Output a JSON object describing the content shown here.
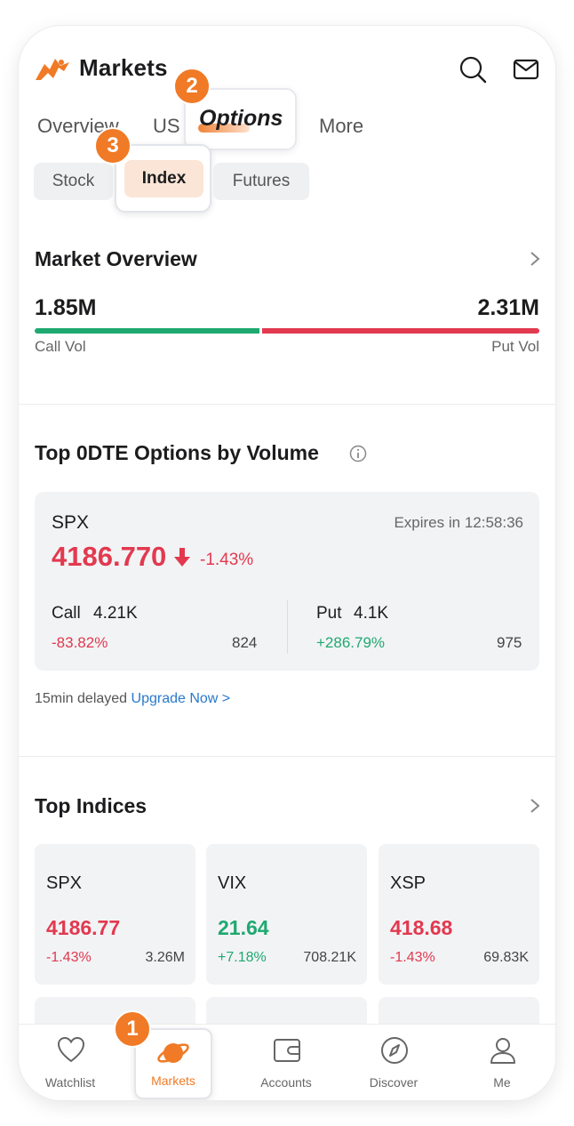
{
  "header": {
    "title": "Markets",
    "icons": [
      "search-icon",
      "mail-icon"
    ]
  },
  "tabs": [
    {
      "label": "Overview"
    },
    {
      "label": "US"
    },
    {
      "label": "Options",
      "active": true
    },
    {
      "label": "More"
    }
  ],
  "subtabs": [
    {
      "label": "Stock"
    },
    {
      "label": "Index",
      "active": true
    },
    {
      "label": "Futures"
    }
  ],
  "steps": [
    "1",
    "2",
    "3"
  ],
  "market_overview": {
    "title": "Market Overview",
    "call_value": "1.85M",
    "put_value": "2.31M",
    "call_label": "Call Vol",
    "put_label": "Put Vol",
    "call_share": 0.445
  },
  "top_0dte": {
    "title": "Top 0DTE Options by Volume",
    "symbol": "SPX",
    "expires": "Expires in 12:58:36",
    "price": "4186.770",
    "change_pct": "-1.43%",
    "call_label": "Call",
    "call_volume": "4.21K",
    "call_change": "-83.82%",
    "call_count": "824",
    "put_label": "Put",
    "put_volume": "4.1K",
    "put_change": "+286.79%",
    "put_count": "975",
    "delay_text": "15min delayed",
    "upgrade_text": "Upgrade Now >"
  },
  "top_indices": {
    "title": "Top Indices",
    "cards": [
      {
        "symbol": "SPX",
        "price": "4186.77",
        "change": "-1.43%",
        "volume": "3.26M",
        "direction": "down"
      },
      {
        "symbol": "VIX",
        "price": "21.64",
        "change": "+7.18%",
        "volume": "708.21K",
        "direction": "up"
      },
      {
        "symbol": "XSP",
        "price": "418.68",
        "change": "-1.43%",
        "volume": "69.83K",
        "direction": "down"
      }
    ]
  },
  "bottom_nav": [
    {
      "label": "Watchlist",
      "icon": "heart-icon"
    },
    {
      "label": "Markets",
      "icon": "planet-icon",
      "active": true
    },
    {
      "label": "Accounts",
      "icon": "wallet-icon"
    },
    {
      "label": "Discover",
      "icon": "compass-icon"
    },
    {
      "label": "Me",
      "icon": "person-icon"
    }
  ],
  "colors": {
    "accent": "#f07a26",
    "up": "#1fa971",
    "down": "#e2394f",
    "link": "#2a79c9"
  }
}
